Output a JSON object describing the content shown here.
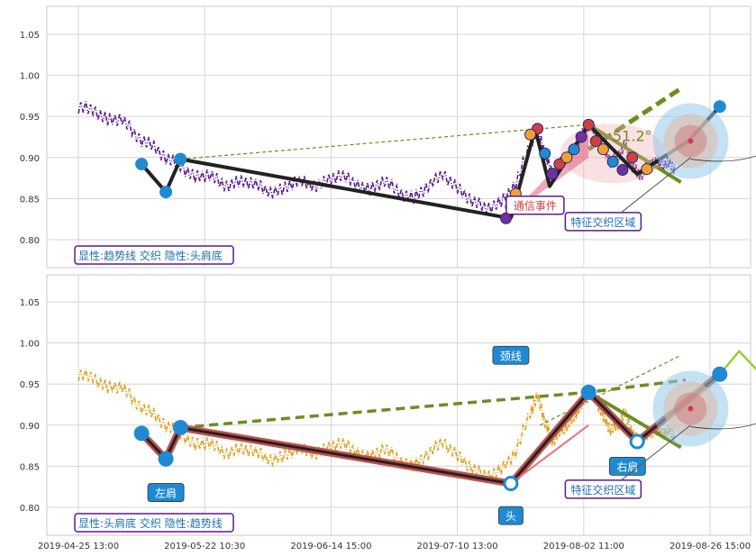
{
  "chart_data": {
    "type": "line",
    "x_ticks": [
      "2019-04-25 13:00",
      "2019-05-22 10:30",
      "2019-06-14 15:00",
      "2019-07-10 13:00",
      "2019-08-02 11:00",
      "2019-08-26 15:00"
    ],
    "y_ticks": [
      "0.80",
      "0.85",
      "0.90",
      "0.95",
      "1.00",
      "1.05"
    ],
    "ylim": [
      0.765,
      1.085
    ],
    "xlim_days": [
      0,
      133
    ],
    "grid": true,
    "panels": [
      {
        "id": "top",
        "label": "显性:趋势线 交织 隐性:头肩底",
        "series_color": "#5b1a8f",
        "price_key_points": [
          [
            0,
            0.962
          ],
          [
            3,
            0.958
          ],
          [
            6,
            0.945
          ],
          [
            9,
            0.948
          ],
          [
            12,
            0.925
          ],
          [
            15,
            0.915
          ],
          [
            18,
            0.9
          ],
          [
            21,
            0.89
          ],
          [
            24,
            0.875
          ],
          [
            27,
            0.88
          ],
          [
            30,
            0.865
          ],
          [
            33,
            0.87
          ],
          [
            36,
            0.87
          ],
          [
            39,
            0.858
          ],
          [
            42,
            0.86
          ],
          [
            45,
            0.873
          ],
          [
            48,
            0.865
          ],
          [
            51,
            0.87
          ],
          [
            54,
            0.88
          ],
          [
            57,
            0.868
          ],
          [
            60,
            0.86
          ],
          [
            63,
            0.873
          ],
          [
            66,
            0.857
          ],
          [
            69,
            0.85
          ],
          [
            72,
            0.866
          ],
          [
            75,
            0.88
          ],
          [
            78,
            0.862
          ],
          [
            81,
            0.848
          ],
          [
            84,
            0.838
          ],
          [
            87,
            0.845
          ],
          [
            90,
            0.868
          ],
          [
            93,
            0.915
          ],
          [
            94.5,
            0.935
          ],
          [
            96,
            0.905
          ],
          [
            97.5,
            0.88
          ],
          [
            99,
            0.892
          ],
          [
            100.5,
            0.9
          ],
          [
            102,
            0.91
          ],
          [
            103.5,
            0.925
          ],
          [
            105,
            0.94
          ],
          [
            106.5,
            0.932
          ],
          [
            108,
            0.91
          ],
          [
            109.5,
            0.895
          ],
          [
            111,
            0.9
          ],
          [
            112.5,
            0.915
          ],
          [
            114,
            0.89
          ],
          [
            115.5,
            0.878
          ],
          [
            117,
            0.888
          ],
          [
            118.5,
            0.895
          ],
          [
            120,
            0.89
          ],
          [
            121.5,
            0.893
          ],
          [
            123,
            0.885
          ]
        ],
        "trend_lines": [
          {
            "points": [
              [
                13,
                0.892
              ],
              [
                18,
                0.858
              ],
              [
                21,
                0.898
              ],
              [
                89,
                0.826
              ]
            ],
            "color": "#222222"
          },
          {
            "points": [
              [
                89,
                0.826
              ],
              [
                94,
                0.935
              ],
              [
                97,
                0.865
              ],
              [
                105,
                0.94
              ]
            ],
            "color": "#222222"
          },
          {
            "points": [
              [
                105,
                0.94
              ],
              [
                115,
                0.88
              ],
              [
                125.5,
                0.92
              ],
              [
                132,
                0.962
              ]
            ],
            "color": "#222222"
          }
        ],
        "markers": [
          {
            "x": 13,
            "y": 0.892,
            "c": "#1f8ad1"
          },
          {
            "x": 18,
            "y": 0.858,
            "c": "#1f8ad1"
          },
          {
            "x": 21,
            "y": 0.898,
            "c": "#1f8ad1"
          },
          {
            "x": 132,
            "y": 0.962,
            "c": "#1f8ad1"
          }
        ],
        "annotations": [
          {
            "text": "通信事件",
            "x": 94,
            "y": 0.842,
            "color": "#d04040"
          },
          {
            "text": "特征交织区域",
            "x": 108,
            "y": 0.822,
            "color": "#1f6fb2"
          },
          {
            "text": "51.2°",
            "x": 114,
            "y": 0.92,
            "color": "#6b8e23"
          }
        ]
      },
      {
        "id": "bottom",
        "label": "显性:头肩底 交织 隐性:趋势线",
        "series_color": "#e0a020",
        "pattern_points": [
          [
            13,
            0.89
          ],
          [
            18,
            0.859
          ],
          [
            21,
            0.897
          ],
          [
            89,
            0.829
          ],
          [
            105,
            0.94
          ],
          [
            115,
            0.88
          ],
          [
            132,
            0.962
          ]
        ],
        "neckline": [
          [
            21,
            0.897
          ],
          [
            105,
            0.94
          ],
          [
            125,
            0.955
          ]
        ],
        "annotations": [
          {
            "text": "颈线",
            "x": 89,
            "y": 0.985,
            "color": "#ffffff",
            "bg": "#1f8ad1"
          },
          {
            "text": "左肩",
            "x": 18,
            "y": 0.818,
            "color": "#ffffff",
            "bg": "#1f8ad1"
          },
          {
            "text": "头",
            "x": 89,
            "y": 0.79,
            "color": "#ffffff",
            "bg": "#1f8ad1"
          },
          {
            "text": "右肩",
            "x": 113,
            "y": 0.85,
            "color": "#ffffff",
            "bg": "#1f8ad1"
          },
          {
            "text": "特征交织区域",
            "x": 108,
            "y": 0.822,
            "color": "#1f6fb2"
          }
        ]
      }
    ]
  }
}
